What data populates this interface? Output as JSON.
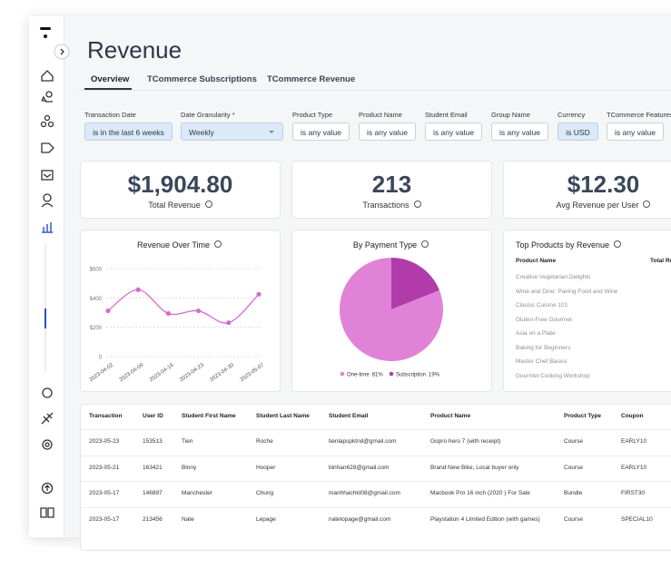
{
  "header": {
    "title": "Revenue",
    "tabs": [
      "Overview",
      "TCommerce Subscriptions",
      "TCommerce Revenue"
    ]
  },
  "filters": [
    {
      "label": "Transaction Date",
      "value": "is in the last 6 weeks"
    },
    {
      "label": "Date Granularity *",
      "value": "Weekly"
    },
    {
      "label": "Product Type",
      "value": "is any value"
    },
    {
      "label": "Product Name",
      "value": "is any value"
    },
    {
      "label": "Student Email",
      "value": "is any value"
    },
    {
      "label": "Group Name",
      "value": "is any value"
    },
    {
      "label": "Currency",
      "value": "is USD"
    },
    {
      "label": "TCommerce Features",
      "value": "is any value"
    }
  ],
  "kpis": [
    {
      "value": "$1,904.80",
      "label": "Total Revenue"
    },
    {
      "value": "213",
      "label": "Transactions"
    },
    {
      "value": "$12.30",
      "label": "Avg Revenue per User"
    }
  ],
  "chart_data": [
    {
      "type": "line",
      "title": "Revenue Over Time",
      "x": [
        "2023-04-02",
        "2023-04-09",
        "2023-04-16",
        "2023-04-23",
        "2023-04-30",
        "2023-05-07"
      ],
      "values": [
        312,
        456,
        294,
        312,
        231,
        425
      ],
      "color": "#d36bd0",
      "ylim": [
        0,
        600
      ],
      "yticks": [
        0,
        {
          "value": 200,
          "label": "$200"
        },
        {
          "value": 400,
          "label": "$400"
        },
        {
          "value": 600,
          "label": "$600"
        }
      ],
      "grid": true
    },
    {
      "type": "pie",
      "title": "By Payment Type",
      "categories": [
        "One-time",
        "Subscription"
      ],
      "values": [
        81,
        19
      ],
      "value_labels": [
        "81%",
        "19%"
      ],
      "colors": [
        "#e083d8",
        "#b13ca9"
      ]
    }
  ],
  "top_products": {
    "title": "Top Products by Revenue",
    "columns": [
      "Product Name",
      "Total Revenue"
    ],
    "rows": [
      "Creative Vegetarian Delights",
      "Wine and Dine: Pairing Food and Wine",
      "Classic Cuisine 101",
      "Gluten-Free Gourmet",
      "Asia on a Plate",
      "Baking for Beginners",
      "Master Chef Basics",
      "Gourmet Cooking Workshop"
    ]
  },
  "transactions": {
    "columns": [
      "Transaction",
      "User ID",
      "Student First Name",
      "Student Last Name",
      "Student Email",
      "Product Name",
      "Product Type",
      "Coupon"
    ],
    "rows": [
      [
        "2023-05-23",
        "153513",
        "Tien",
        "Roche",
        "tienlapspktnd@gmail.com",
        "Gopro hero 7 (with receipt)",
        "Course",
        "EARLY10"
      ],
      [
        "2023-05-21",
        "163421",
        "Binny",
        "Hooper",
        "binhan628@gmail.com",
        "Brand New Bike, Local buyer only",
        "Course",
        "EARLY10"
      ],
      [
        "2023-05-17",
        "146897",
        "Manchester",
        "Chung",
        "manhhachkt08@gmail.com",
        "Macbook Pro 16 inch (2020 ) For Sale",
        "Bundle",
        "FIRST30"
      ],
      [
        "2023-05-17",
        "213456",
        "Nate",
        "Lepage",
        "natelopage@gmail.com",
        "Playstation 4 Limited Edition (with games)",
        "Course",
        "SPECIAL10"
      ]
    ]
  }
}
